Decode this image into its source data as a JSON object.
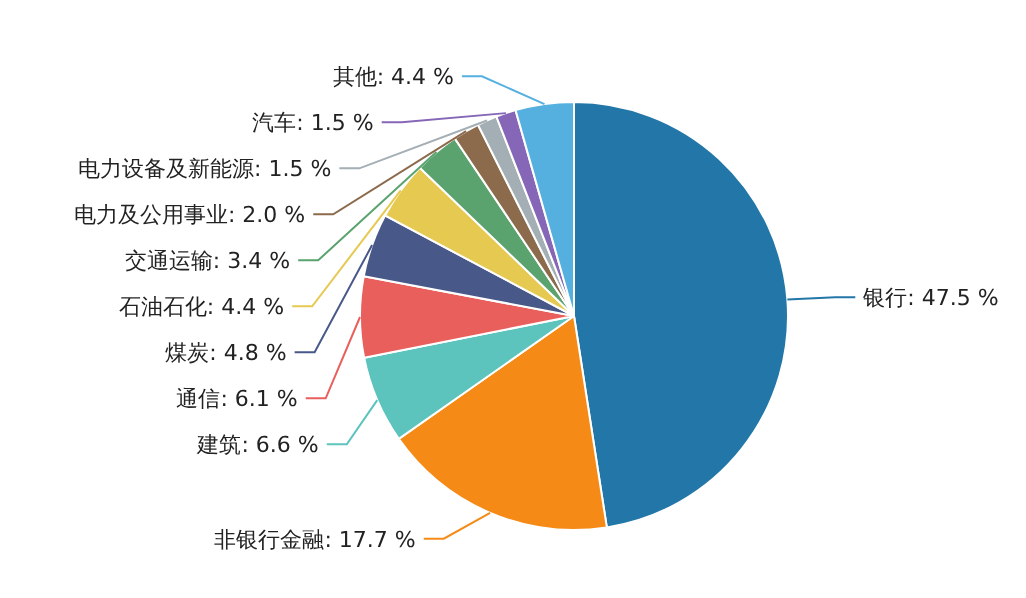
{
  "chart_data": {
    "type": "pie",
    "categories": [
      "银行",
      "非银行金融",
      "建筑",
      "通信",
      "煤炭",
      "石油石化",
      "交通运输",
      "电力及公用事业",
      "电力设备及新能源",
      "汽车",
      "其他"
    ],
    "values": [
      47.5,
      17.7,
      6.6,
      6.1,
      4.8,
      4.4,
      3.4,
      2.0,
      1.5,
      1.5,
      4.4
    ],
    "value_labels": [
      "47.5 %",
      "17.7 %",
      "6.6 %",
      "6.1 %",
      "4.8 %",
      "4.4 %",
      "3.4 %",
      "2.0 %",
      "1.5 %",
      "1.5 %",
      "4.4 %"
    ],
    "colors": [
      "#2377a8",
      "#f58a16",
      "#5cc3bd",
      "#e85f5c",
      "#485989",
      "#e6c951",
      "#5aa36f",
      "#8c6a4c",
      "#a4afb5",
      "#8666b6",
      "#55b0e0"
    ]
  }
}
